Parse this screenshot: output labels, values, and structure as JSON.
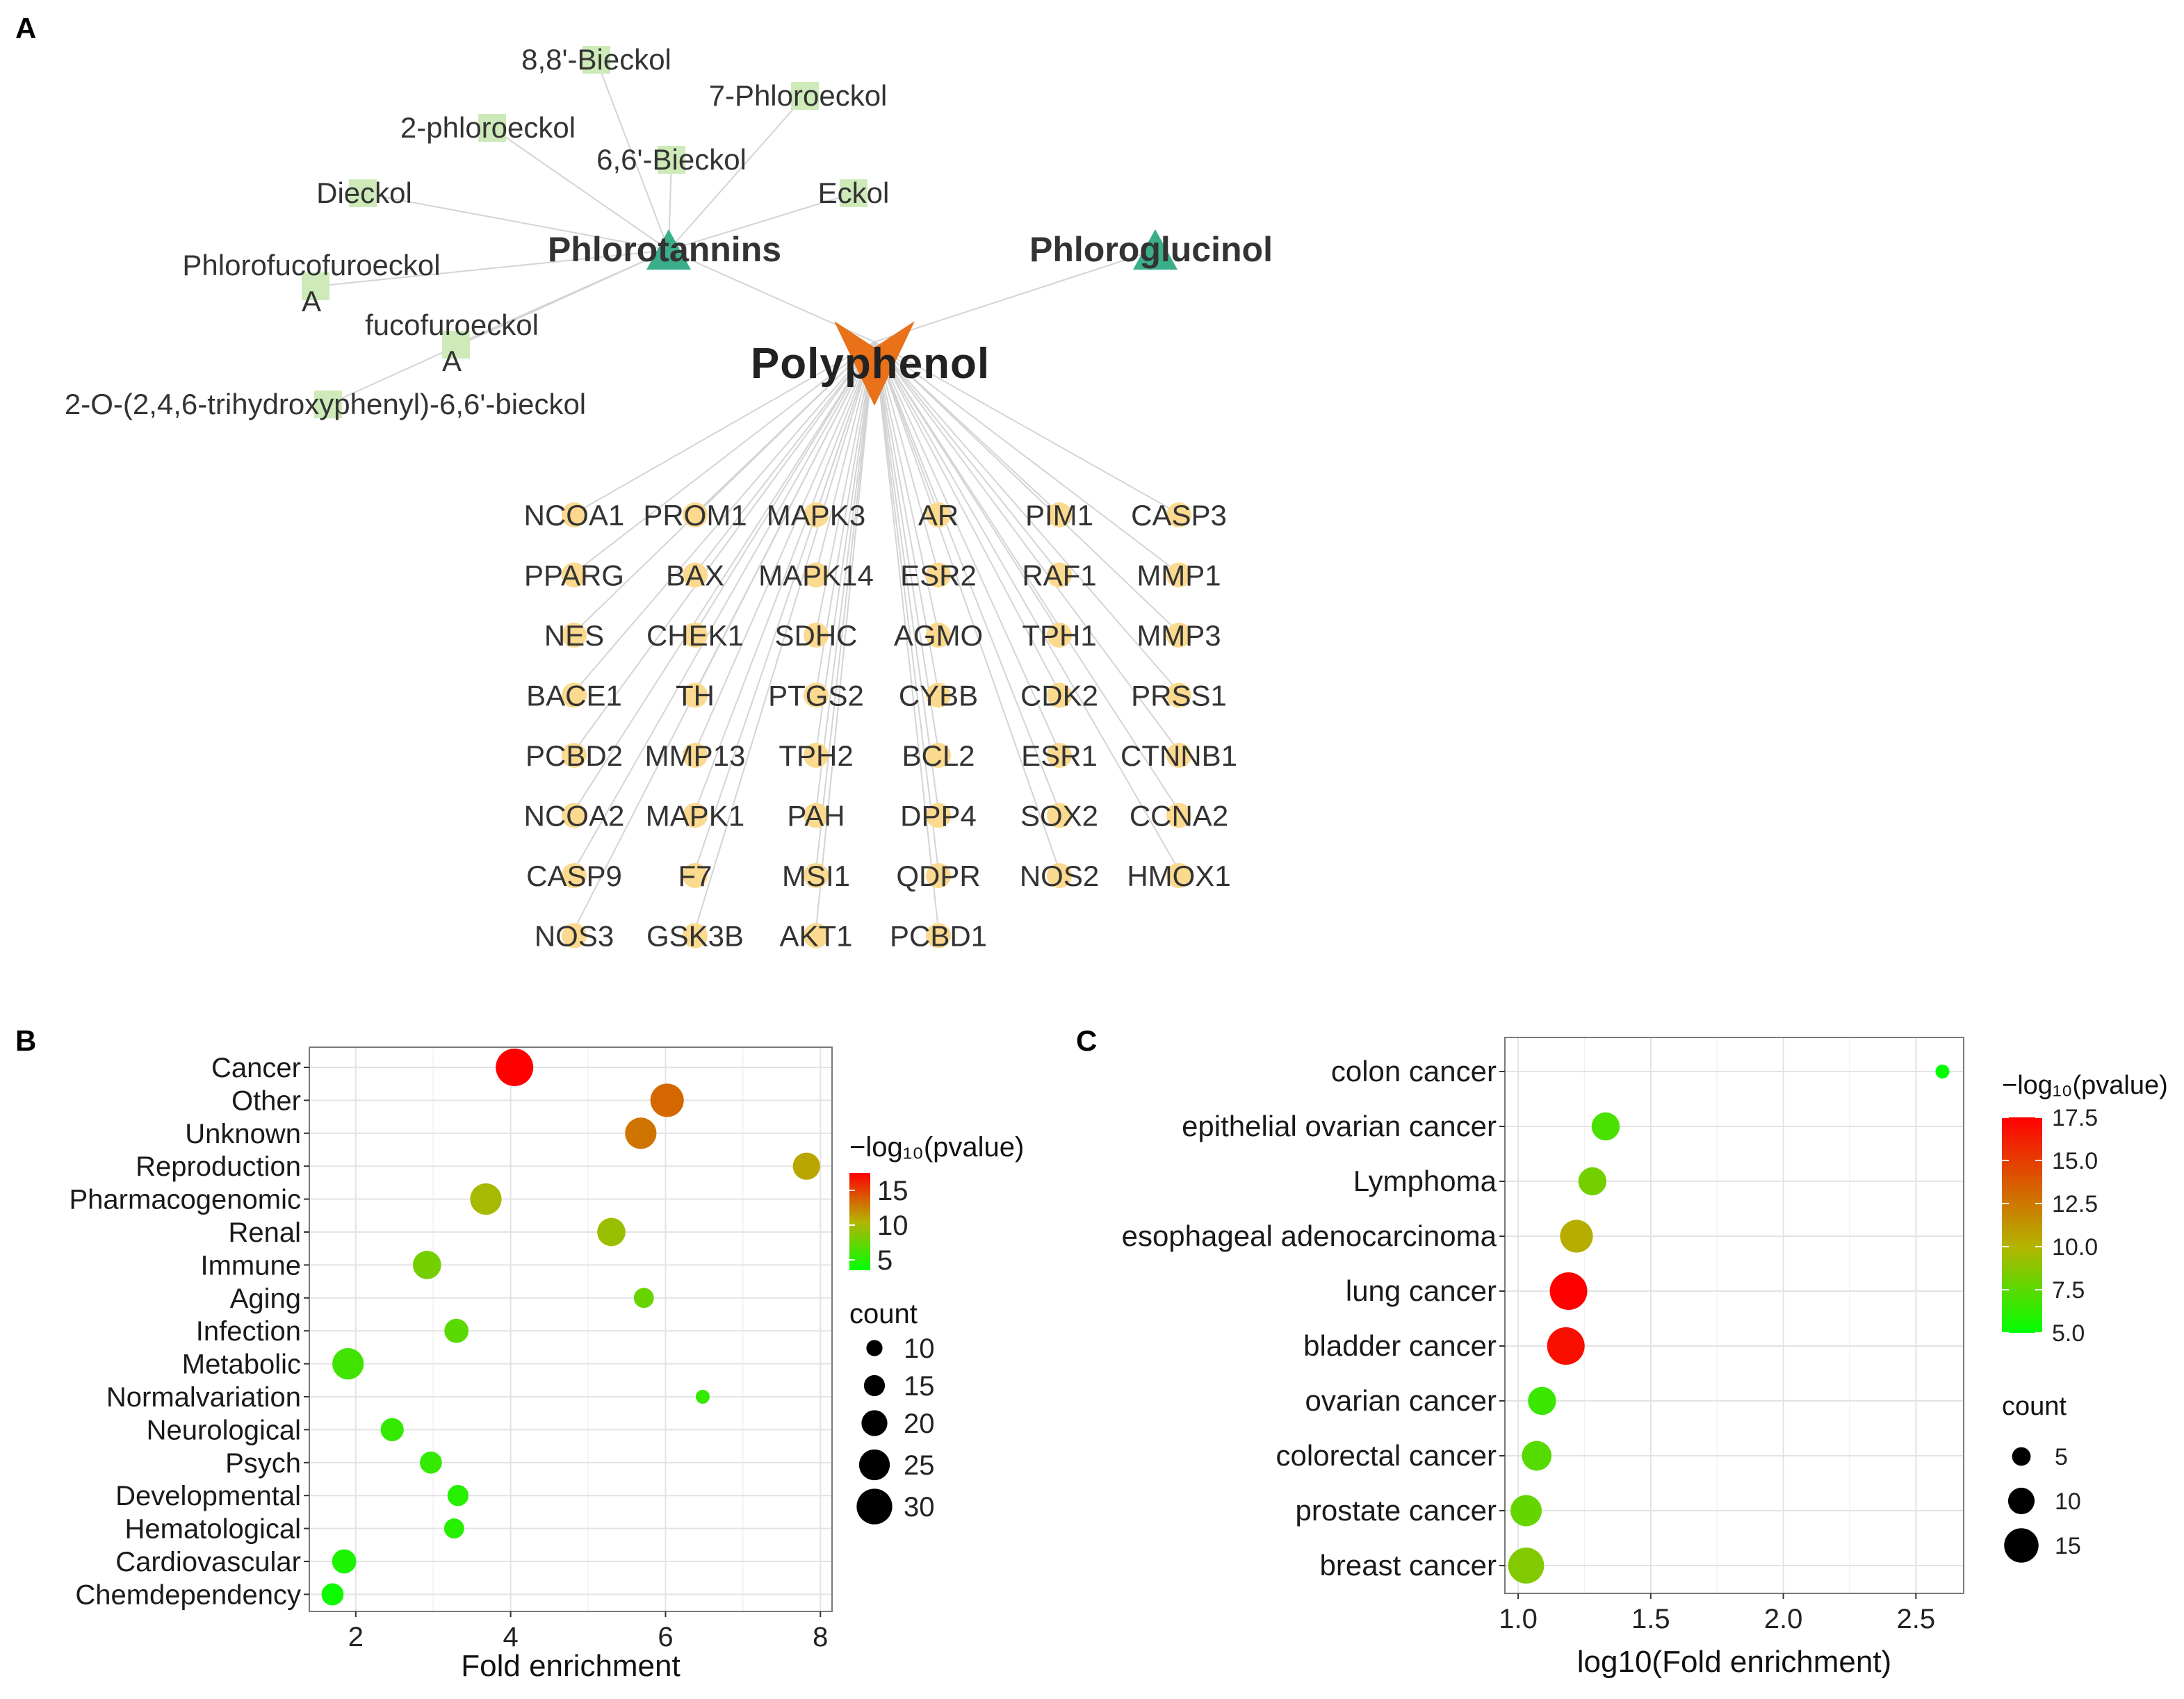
{
  "panels": {
    "a": "A",
    "b": "B",
    "c": "C"
  },
  "network": {
    "root": "Polyphenol",
    "groups": [
      "Phlorotannins",
      "Phloroglucinol"
    ],
    "compounds": [
      "8,8'-Bieckol",
      "7-Phloroeckol",
      "2-phloroeckol",
      "6,6'-Bieckol",
      "Dieckol",
      "Eckol",
      "Phlorofucofuroeckol A",
      "fucofuroeckol A",
      "2-O-(2,4,6-trihydroxyphenyl)-6,6'-bieckol"
    ],
    "genes": [
      [
        "NCOA1",
        "PROM1",
        "MAPK3",
        "AR",
        "PIM1",
        "CASP3"
      ],
      [
        "PPARG",
        "BAX",
        "MAPK14",
        "ESR2",
        "RAF1",
        "MMP1"
      ],
      [
        "NES",
        "CHEK1",
        "SDHC",
        "AGMO",
        "TPH1",
        "MMP3"
      ],
      [
        "BACE1",
        "TH",
        "PTGS2",
        "CYBB",
        "CDK2",
        "PRSS1"
      ],
      [
        "PCBD2",
        "MMP13",
        "TPH2",
        "BCL2",
        "ESR1",
        "CTNNB1"
      ],
      [
        "NCOA2",
        "MAPK1",
        "PAH",
        "DPP4",
        "SOX2",
        "CCNA2"
      ],
      [
        "CASP9",
        "F7",
        "MSI1",
        "QDPR",
        "NOS2",
        "HMOX1"
      ],
      [
        "NOS3",
        "GSK3B",
        "AKT1",
        "PCBD1"
      ]
    ],
    "colors": {
      "root": "#E8711A",
      "group": "#3AAE8A",
      "compound": "#CDEAB8",
      "gene": "#FBD98E",
      "edge": "#D4D4D4"
    }
  },
  "chart_data": [
    {
      "type": "scatter",
      "panel": "B",
      "xlabel": "Fold enrichment",
      "ylabel": "",
      "xlim": [
        1.4,
        8.15
      ],
      "xticks": [
        2,
        4,
        6,
        8
      ],
      "categories": [
        "Cancer",
        "Other",
        "Unknown",
        "Reproduction",
        "Pharmacogenomic",
        "Renal",
        "Immune",
        "Aging",
        "Infection",
        "Metabolic",
        "Normalvariation",
        "Neurological",
        "Psych",
        "Developmental",
        "Hematological",
        "Cardiovascular",
        "Chemdependency"
      ],
      "x": [
        4.05,
        6.02,
        5.68,
        7.82,
        3.68,
        5.3,
        2.92,
        5.72,
        3.3,
        1.9,
        6.48,
        2.47,
        2.97,
        3.32,
        3.27,
        1.85,
        1.7
      ],
      "pvalue": [
        17.5,
        13.5,
        13.0,
        11.0,
        10.0,
        9.5,
        8.0,
        7.5,
        7.0,
        6.0,
        5.5,
        5.5,
        5.5,
        5.0,
        5.0,
        4.5,
        4.0
      ],
      "count": [
        30,
        26,
        24,
        20,
        24,
        21,
        21,
        13,
        17,
        24,
        7,
        16,
        15,
        14,
        13,
        17,
        15
      ],
      "color_legend": {
        "title": "−log₁₀(pvalue)",
        "ticks": [
          15,
          10,
          5
        ],
        "range": [
          3.5,
          17.5
        ]
      },
      "size_legend": {
        "title": "count",
        "ticks": [
          10,
          15,
          20,
          25,
          30
        ]
      },
      "grid": true
    },
    {
      "type": "scatter",
      "panel": "C",
      "xlabel": "log10(Fold enrichment)",
      "ylabel": "",
      "xlim": [
        0.95,
        2.68
      ],
      "xticks": [
        "1.0",
        "1.5",
        "2.0",
        "2.5"
      ],
      "categories": [
        "colon cancer",
        "epithelial ovarian cancer",
        "Lymphoma",
        "esophageal adenocarcinoma",
        "lung cancer",
        "bladder cancer",
        "ovarian cancer",
        "colorectal cancer",
        "prostate cancer",
        "breast cancer"
      ],
      "x": [
        2.6,
        1.33,
        1.28,
        1.22,
        1.19,
        1.18,
        1.09,
        1.07,
        1.03,
        1.03
      ],
      "pvalue": [
        5.0,
        7.5,
        9.0,
        11.5,
        17.5,
        17.0,
        7.0,
        8.0,
        8.5,
        9.5
      ],
      "count": [
        2,
        11,
        11,
        14,
        17,
        17,
        11,
        12,
        13,
        16
      ],
      "color_legend": {
        "title": "−log₁₀(pvalue)",
        "ticks": [
          "17.5",
          "15.0",
          "12.5",
          "10.0",
          "7.5",
          "5.0"
        ],
        "range": [
          5,
          17.5
        ]
      },
      "size_legend": {
        "title": "count",
        "ticks": [
          5,
          10,
          15
        ]
      },
      "grid": true
    }
  ]
}
